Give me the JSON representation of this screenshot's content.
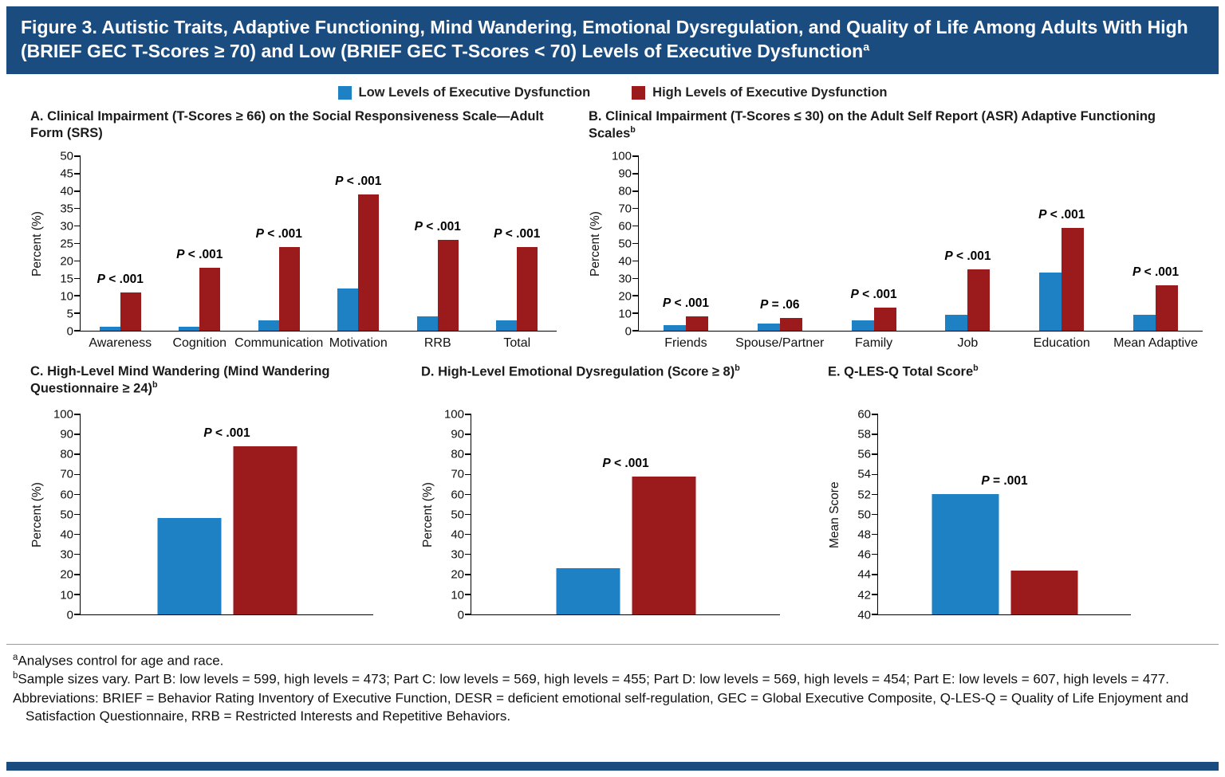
{
  "colors": {
    "navy": "#1a4c80",
    "low_bar": "#1d81c4",
    "high_bar": "#9b1b1d"
  },
  "title": {
    "text": "Figure 3. Autistic Traits, Adaptive Functioning, Mind Wandering, Emotional Dysregulation, and Quality of Life Among Adults With High (BRIEF GEC T-Scores ≥ 70) and Low (BRIEF GEC T-Scores < 70) Levels of Executive Dysfunction",
    "sup": "a"
  },
  "legend": [
    {
      "label": "Low Levels of Executive Dysfunction",
      "color": "#1d81c4"
    },
    {
      "label": "High Levels of Executive Dysfunction",
      "color": "#9b1b1d"
    }
  ],
  "chart_data": [
    {
      "id": "A",
      "type": "bar",
      "title": "A. Clinical Impairment (T-Scores ≥ 66) on the Social Responsiveness Scale—Adult Form (SRS)",
      "title_sup": "",
      "xlabel": "",
      "ylabel": "Percent (%)",
      "ylim": [
        0,
        50
      ],
      "ystep": 5,
      "grid": false,
      "legend_position": "top-shared",
      "categories": [
        "Awareness",
        "Cognition",
        "Communication",
        "Motivation",
        "RRB",
        "Total"
      ],
      "series": [
        {
          "name": "Low Levels of Executive Dysfunction",
          "values": [
            1,
            1,
            3,
            12,
            4,
            3
          ]
        },
        {
          "name": "High Levels of Executive Dysfunction",
          "values": [
            11,
            18,
            24,
            39,
            26,
            24
          ]
        }
      ],
      "p_labels": [
        "P < .001",
        "P < .001",
        "P < .001",
        "P < .001",
        "P < .001",
        "P < .001"
      ]
    },
    {
      "id": "B",
      "type": "bar",
      "title": "B. Clinical Impairment (T-Scores ≤ 30) on the Adult Self Report (ASR) Adaptive Functioning Scales",
      "title_sup": "b",
      "xlabel": "",
      "ylabel": "Percent (%)",
      "ylim": [
        0,
        100
      ],
      "ystep": 10,
      "grid": false,
      "legend_position": "top-shared",
      "categories": [
        "Friends",
        "Spouse/Partner",
        "Family",
        "Job",
        "Education",
        "Mean Adaptive"
      ],
      "series": [
        {
          "name": "Low Levels of Executive Dysfunction",
          "values": [
            3,
            4,
            6,
            9,
            33,
            9
          ]
        },
        {
          "name": "High Levels of Executive Dysfunction",
          "values": [
            8,
            7,
            13,
            35,
            59,
            26
          ]
        }
      ],
      "p_labels": [
        "P < .001",
        "P = .06",
        "P < .001",
        "P < .001",
        "P < .001",
        "P < .001"
      ]
    },
    {
      "id": "C",
      "type": "bar",
      "title": "C. High-Level Mind Wandering (Mind Wandering Questionnaire ≥ 24)",
      "title_sup": "b",
      "xlabel": "",
      "ylabel": "Percent (%)",
      "ylim": [
        0,
        100
      ],
      "ystep": 10,
      "grid": false,
      "legend_position": "top-shared",
      "categories": [
        ""
      ],
      "series": [
        {
          "name": "Low Levels of Executive Dysfunction",
          "values": [
            48
          ]
        },
        {
          "name": "High Levels of Executive Dysfunction",
          "values": [
            84
          ]
        }
      ],
      "p_labels": [
        "P < .001"
      ]
    },
    {
      "id": "D",
      "type": "bar",
      "title": "D. High-Level Emotional Dysregulation (Score ≥ 8)",
      "title_sup": "b",
      "xlabel": "",
      "ylabel": "Percent (%)",
      "ylim": [
        0,
        100
      ],
      "ystep": 10,
      "grid": false,
      "legend_position": "top-shared",
      "categories": [
        ""
      ],
      "series": [
        {
          "name": "Low Levels of Executive Dysfunction",
          "values": [
            23
          ]
        },
        {
          "name": "High Levels of Executive Dysfunction",
          "values": [
            69
          ]
        }
      ],
      "p_labels": [
        "P < .001"
      ]
    },
    {
      "id": "E",
      "type": "bar",
      "title": "E. Q-LES-Q Total Score",
      "title_sup": "b",
      "xlabel": "",
      "ylabel": "Mean Score",
      "ylim": [
        40,
        60
      ],
      "ystep": 2,
      "grid": false,
      "legend_position": "top-shared",
      "categories": [
        ""
      ],
      "series": [
        {
          "name": "Low Levels of Executive Dysfunction",
          "values": [
            52
          ]
        },
        {
          "name": "High Levels of Executive Dysfunction",
          "values": [
            44.4
          ]
        }
      ],
      "p_labels": [
        "P = .001"
      ]
    }
  ],
  "footnotes": [
    {
      "sup": "a",
      "text": "Analyses control for age and race."
    },
    {
      "sup": "b",
      "text": "Sample sizes vary. Part B: low levels = 599, high levels = 473; Part C: low levels = 569, high levels = 455; Part D: low levels = 569, high levels = 454; Part E: low levels = 607, high levels = 477."
    },
    {
      "sup": "",
      "text": "Abbreviations: BRIEF = Behavior Rating Inventory of Executive Function, DESR = deficient emotional self-regulation, GEC = Global Executive Composite, Q-LES-Q = Quality of Life Enjoyment and Satisfaction Questionnaire, RRB = Restricted Interests and Repetitive Behaviors."
    }
  ]
}
